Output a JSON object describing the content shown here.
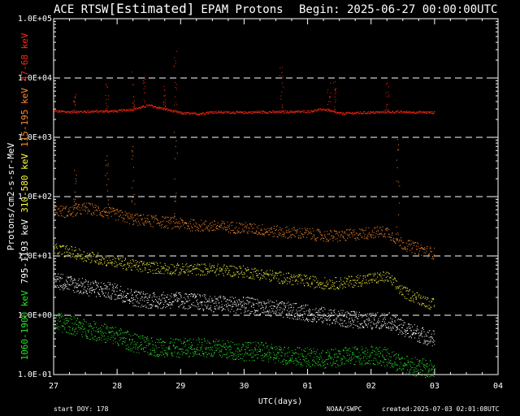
{
  "header": {
    "title_prefix": "ACE RTSW",
    "title_bracket": "[Estimated]",
    "title_suffix": "EPAM Protons",
    "begin": "Begin: 2025-06-27 00:00:00UTC"
  },
  "footer": {
    "start_doy": "start DOY:  178",
    "source": "NOAA/SWPC",
    "created": "created:2025-07-03 02:01:08UTC"
  },
  "colors": {
    "background": "#000000",
    "axes": "#ffffff",
    "grid": "#ffffff",
    "ch_47_68": "#ff2a10",
    "ch_115_195": "#ff8c28",
    "ch_310_580": "#ffff3c",
    "ch_795_1193": "#ffffff",
    "ch_1060_1900": "#28e628"
  },
  "chart_data": {
    "type": "scatter",
    "title": "ACE RTSW[Estimated] EPAM Protons",
    "xlabel": "UTC(days)",
    "ylabel": "Protons/cm2-s-sr-MeV",
    "x_type": "date",
    "xlim": [
      "2025-06-27T00:00",
      "2025-07-04T00:00"
    ],
    "x_tick_labels": [
      "27",
      "28",
      "29",
      "30",
      "01",
      "02",
      "03",
      "04"
    ],
    "y_scale": "log",
    "ylim": [
      0.1,
      100000
    ],
    "y_tick_labels": [
      "1.0E-01",
      "1.0E+00",
      "1.0E+01",
      "1.0E+02",
      "1.0E+03",
      "1.0E+04",
      "1.0E+05"
    ],
    "grid": "dashed horizontal lines at 1.0E+00, 1.0E+01, 1.0E+02, 1.0E+03, 1.0E+04",
    "legend": "left",
    "series": [
      {
        "name": "47-68 keV",
        "color": "#ff2a10",
        "points": [
          [
            "2025-06-27T00:00",
            2800
          ],
          [
            "2025-06-27T06:00",
            2700
          ],
          [
            "2025-06-27T12:00",
            2750
          ],
          [
            "2025-06-28T00:00",
            2800
          ],
          [
            "2025-06-28T06:00",
            3000
          ],
          [
            "2025-06-28T12:00",
            3500
          ],
          [
            "2025-06-29T00:00",
            2600
          ],
          [
            "2025-06-29T06:00",
            2500
          ],
          [
            "2025-06-29T12:00",
            2700
          ],
          [
            "2025-06-30T00:00",
            2650
          ],
          [
            "2025-06-30T06:00",
            2700
          ],
          [
            "2025-06-30T12:00",
            2700
          ],
          [
            "2025-07-01T00:00",
            2750
          ],
          [
            "2025-07-01T06:00",
            3000
          ],
          [
            "2025-07-01T12:00",
            2550
          ],
          [
            "2025-07-02T00:00",
            2650
          ],
          [
            "2025-07-02T06:00",
            2700
          ],
          [
            "2025-07-02T12:00",
            2700
          ],
          [
            "2025-07-03T00:00",
            2650
          ]
        ],
        "spikes": [
          [
            "2025-06-27T08:00",
            6000
          ],
          [
            "2025-06-27T20:00",
            8000
          ],
          [
            "2025-06-28T06:00",
            13000
          ],
          [
            "2025-06-28T10:00",
            12000
          ],
          [
            "2025-06-28T18:00",
            8000
          ],
          [
            "2025-06-28T22:00",
            30000
          ],
          [
            "2025-06-30T14:00",
            16000
          ],
          [
            "2025-07-01T08:00",
            11000
          ],
          [
            "2025-07-01T10:00",
            9000
          ],
          [
            "2025-07-02T06:00",
            10000
          ]
        ]
      },
      {
        "name": "115-195 keV",
        "color": "#ff8c28",
        "points": [
          [
            "2025-06-27T00:00",
            60
          ],
          [
            "2025-06-27T06:00",
            55
          ],
          [
            "2025-06-27T12:00",
            65
          ],
          [
            "2025-06-28T00:00",
            50
          ],
          [
            "2025-06-28T06:00",
            42
          ],
          [
            "2025-06-28T12:00",
            40
          ],
          [
            "2025-06-29T00:00",
            35
          ],
          [
            "2025-06-29T06:00",
            33
          ],
          [
            "2025-06-29T12:00",
            32
          ],
          [
            "2025-06-30T00:00",
            30
          ],
          [
            "2025-06-30T06:00",
            28
          ],
          [
            "2025-06-30T12:00",
            26
          ],
          [
            "2025-07-01T00:00",
            24
          ],
          [
            "2025-07-01T06:00",
            22
          ],
          [
            "2025-07-01T12:00",
            22
          ],
          [
            "2025-07-02T00:00",
            25
          ],
          [
            "2025-07-02T06:00",
            26
          ],
          [
            "2025-07-02T12:00",
            16
          ],
          [
            "2025-07-03T00:00",
            11
          ]
        ],
        "spikes": [
          [
            "2025-06-27T08:00",
            300
          ],
          [
            "2025-06-27T20:00",
            500
          ],
          [
            "2025-06-28T06:00",
            800
          ],
          [
            "2025-06-28T22:00",
            1500
          ],
          [
            "2025-07-02T10:00",
            1200
          ]
        ]
      },
      {
        "name": "310-580 keV",
        "color": "#ffff3c",
        "points": [
          [
            "2025-06-27T00:00",
            13
          ],
          [
            "2025-06-27T06:00",
            12
          ],
          [
            "2025-06-27T12:00",
            10
          ],
          [
            "2025-06-28T00:00",
            8
          ],
          [
            "2025-06-28T06:00",
            7
          ],
          [
            "2025-06-28T12:00",
            6.5
          ],
          [
            "2025-06-29T00:00",
            6
          ],
          [
            "2025-06-29T06:00",
            6
          ],
          [
            "2025-06-29T12:00",
            6
          ],
          [
            "2025-06-30T00:00",
            5.5
          ],
          [
            "2025-06-30T06:00",
            5
          ],
          [
            "2025-06-30T12:00",
            4.5
          ],
          [
            "2025-07-01T00:00",
            3.8
          ],
          [
            "2025-07-01T06:00",
            3.5
          ],
          [
            "2025-07-01T12:00",
            3.5
          ],
          [
            "2025-07-02T00:00",
            4.2
          ],
          [
            "2025-07-02T06:00",
            4.5
          ],
          [
            "2025-07-02T12:00",
            2.5
          ],
          [
            "2025-07-03T00:00",
            1.5
          ]
        ]
      },
      {
        "name": "795-1193 keV",
        "color": "#ffffff",
        "points": [
          [
            "2025-06-27T00:00",
            4
          ],
          [
            "2025-06-27T06:00",
            3.5
          ],
          [
            "2025-06-27T12:00",
            3
          ],
          [
            "2025-06-28T00:00",
            2.5
          ],
          [
            "2025-06-28T06:00",
            2
          ],
          [
            "2025-06-28T12:00",
            1.8
          ],
          [
            "2025-06-29T00:00",
            1.8
          ],
          [
            "2025-06-29T06:00",
            1.7
          ],
          [
            "2025-06-29T12:00",
            1.6
          ],
          [
            "2025-06-30T00:00",
            1.5
          ],
          [
            "2025-06-30T06:00",
            1.4
          ],
          [
            "2025-06-30T12:00",
            1.3
          ],
          [
            "2025-07-01T00:00",
            1.1
          ],
          [
            "2025-07-01T06:00",
            1
          ],
          [
            "2025-07-01T12:00",
            0.9
          ],
          [
            "2025-07-02T00:00",
            0.8
          ],
          [
            "2025-07-02T06:00",
            0.85
          ],
          [
            "2025-07-02T12:00",
            0.6
          ],
          [
            "2025-07-03T00:00",
            0.4
          ]
        ]
      },
      {
        "name": "1060-1900 keV",
        "color": "#28e628",
        "points": [
          [
            "2025-06-27T00:00",
            0.8
          ],
          [
            "2025-06-27T06:00",
            0.7
          ],
          [
            "2025-06-27T12:00",
            0.6
          ],
          [
            "2025-06-28T00:00",
            0.45
          ],
          [
            "2025-06-28T06:00",
            0.35
          ],
          [
            "2025-06-28T12:00",
            0.3
          ],
          [
            "2025-06-29T00:00",
            0.28
          ],
          [
            "2025-06-29T06:00",
            0.3
          ],
          [
            "2025-06-29T12:00",
            0.28
          ],
          [
            "2025-06-30T00:00",
            0.25
          ],
          [
            "2025-06-30T06:00",
            0.25
          ],
          [
            "2025-06-30T12:00",
            0.22
          ],
          [
            "2025-07-01T00:00",
            0.2
          ],
          [
            "2025-07-01T06:00",
            0.18
          ],
          [
            "2025-07-01T12:00",
            0.2
          ],
          [
            "2025-07-02T00:00",
            0.22
          ],
          [
            "2025-07-02T06:00",
            0.2
          ],
          [
            "2025-07-02T12:00",
            0.15
          ],
          [
            "2025-07-03T00:00",
            0.12
          ]
        ]
      }
    ]
  }
}
